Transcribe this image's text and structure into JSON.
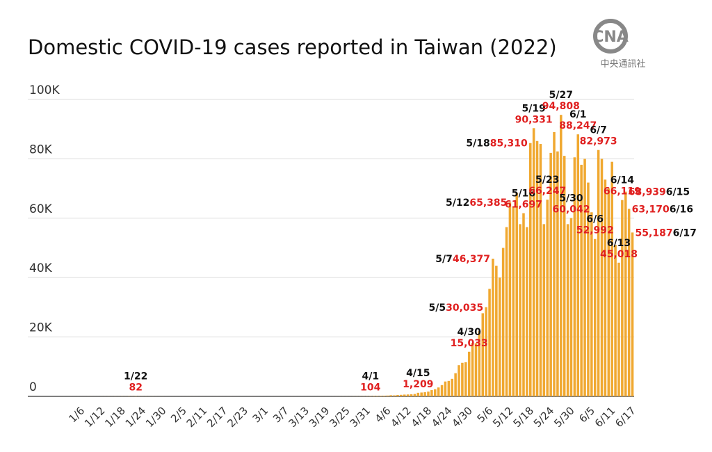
{
  "chart_data": {
    "type": "bar",
    "title": "Domestic COVID-19 cases reported in Taiwan (2022)",
    "logo": {
      "mark": "CNA",
      "name": "中央通訊社"
    },
    "color": "#f0a830",
    "categories": [
      null,
      null,
      null,
      null,
      null,
      "1/6",
      null,
      null,
      null,
      null,
      null,
      "1/12",
      null,
      null,
      null,
      null,
      null,
      "1/18",
      null,
      null,
      null,
      null,
      null,
      "1/24",
      null,
      null,
      null,
      null,
      null,
      "1/30",
      null,
      null,
      null,
      null,
      null,
      "2/5",
      null,
      null,
      null,
      null,
      null,
      "2/11",
      null,
      null,
      null,
      null,
      null,
      "2/17",
      null,
      null,
      null,
      null,
      null,
      "2/23",
      null,
      null,
      null,
      null,
      null,
      "3/1",
      null,
      null,
      null,
      null,
      null,
      "3/7",
      null,
      null,
      null,
      null,
      null,
      "3/13",
      null,
      null,
      null,
      null,
      null,
      "3/19",
      null,
      null,
      null,
      null,
      null,
      "3/25",
      null,
      null,
      null,
      null,
      null,
      "3/31",
      null,
      null,
      null,
      null,
      null,
      "4/6",
      null,
      null,
      null,
      null,
      null,
      "4/12",
      null,
      null,
      null,
      null,
      null,
      "4/18",
      null,
      null,
      null,
      null,
      null,
      "4/24",
      null,
      null,
      null,
      null,
      null,
      "4/30",
      null,
      null,
      null,
      null,
      null,
      "5/6",
      null,
      null,
      null,
      null,
      null,
      "5/12",
      null,
      null,
      null,
      null,
      null,
      "5/18",
      null,
      null,
      null,
      null,
      null,
      "5/24",
      null,
      null,
      null,
      null,
      null,
      "5/30",
      null,
      null,
      null,
      null,
      null,
      "6/5",
      null,
      null,
      null,
      null,
      null,
      "6/11",
      null,
      null,
      null,
      null,
      null,
      "6/17"
    ],
    "values": [
      3,
      2,
      6,
      5,
      8,
      4,
      7,
      10,
      12,
      9,
      8,
      15,
      20,
      25,
      18,
      30,
      22,
      40,
      35,
      60,
      45,
      82,
      50,
      35,
      40,
      30,
      25,
      20,
      15,
      18,
      10,
      8,
      6,
      5,
      4,
      7,
      9,
      12,
      10,
      8,
      6,
      5,
      4,
      3,
      6,
      8,
      5,
      4,
      7,
      9,
      6,
      5,
      4,
      3,
      5,
      6,
      4,
      3,
      5,
      4,
      3,
      5,
      6,
      4,
      3,
      2,
      5,
      7,
      8,
      6,
      5,
      4,
      3,
      6,
      8,
      10,
      12,
      15,
      9,
      10,
      18,
      20,
      25,
      30,
      22,
      35,
      40,
      50,
      60,
      80,
      104,
      159,
      157,
      190,
      240,
      276,
      380,
      345,
      480,
      520,
      600,
      640,
      700,
      800,
      1209,
      1300,
      1400,
      1600,
      2100,
      2400,
      3000,
      3800,
      5000,
      5200,
      5900,
      7800,
      10500,
      11300,
      11500,
      15033,
      18000,
      17900,
      22000,
      28000,
      30035,
      36200,
      46377,
      44000,
      40000,
      50000,
      57000,
      65385,
      64000,
      68500,
      58000,
      61697,
      57000,
      85310,
      90331,
      86000,
      85000,
      58000,
      66247,
      82000,
      89000,
      82500,
      94808,
      81000,
      58000,
      60042,
      80500,
      88247,
      78000,
      80000,
      72000,
      62000,
      52992,
      82973,
      80000,
      73000,
      70000,
      79000,
      51000,
      45018,
      66119,
      68939,
      63170,
      55187
    ],
    "ylim": [
      0,
      100000
    ],
    "yticks": [
      0,
      {
        "value": 20000,
        "label": "20K"
      },
      {
        "value": 40000,
        "label": "40K"
      },
      {
        "value": 60000,
        "label": "60K"
      },
      {
        "value": 80000,
        "label": "80K"
      },
      {
        "value": 100000,
        "label": "100K"
      }
    ],
    "grid": true,
    "annotations": [
      {
        "date": "1/22",
        "value": 82,
        "label": "82"
      },
      {
        "date": "4/1",
        "value": 104,
        "label": "104"
      },
      {
        "date": "4/15",
        "value": 1209,
        "label": "1,209"
      },
      {
        "date": "4/30",
        "value": 15033,
        "label": "15,033"
      },
      {
        "date": "5/5",
        "value": 30035,
        "label": "30,035"
      },
      {
        "date": "5/7",
        "value": 46377,
        "label": "46,377"
      },
      {
        "date": "5/12",
        "value": 65385,
        "label": "65,385"
      },
      {
        "date": "5/16",
        "value": 61697,
        "label": "61,697"
      },
      {
        "date": "5/18",
        "value": 85310,
        "label": "85,310"
      },
      {
        "date": "5/19",
        "value": 90331,
        "label": "90,331"
      },
      {
        "date": "5/23",
        "value": 66247,
        "label": "66,247"
      },
      {
        "date": "5/27",
        "value": 94808,
        "label": "94,808"
      },
      {
        "date": "5/30",
        "value": 60042,
        "label": "60,042"
      },
      {
        "date": "6/1",
        "value": 88247,
        "label": "88,247"
      },
      {
        "date": "6/6",
        "value": 52992,
        "label": "52,992"
      },
      {
        "date": "6/7",
        "value": 82973,
        "label": "82,973"
      },
      {
        "date": "6/13",
        "value": 45018,
        "label": "45,018"
      },
      {
        "date": "6/14",
        "value": 66119,
        "label": "66,119"
      },
      {
        "date": "6/15",
        "value": 68939,
        "label": "68,939"
      },
      {
        "date": "6/16",
        "value": 63170,
        "label": "63,170"
      },
      {
        "date": "6/17",
        "value": 55187,
        "label": "55,187"
      }
    ]
  }
}
